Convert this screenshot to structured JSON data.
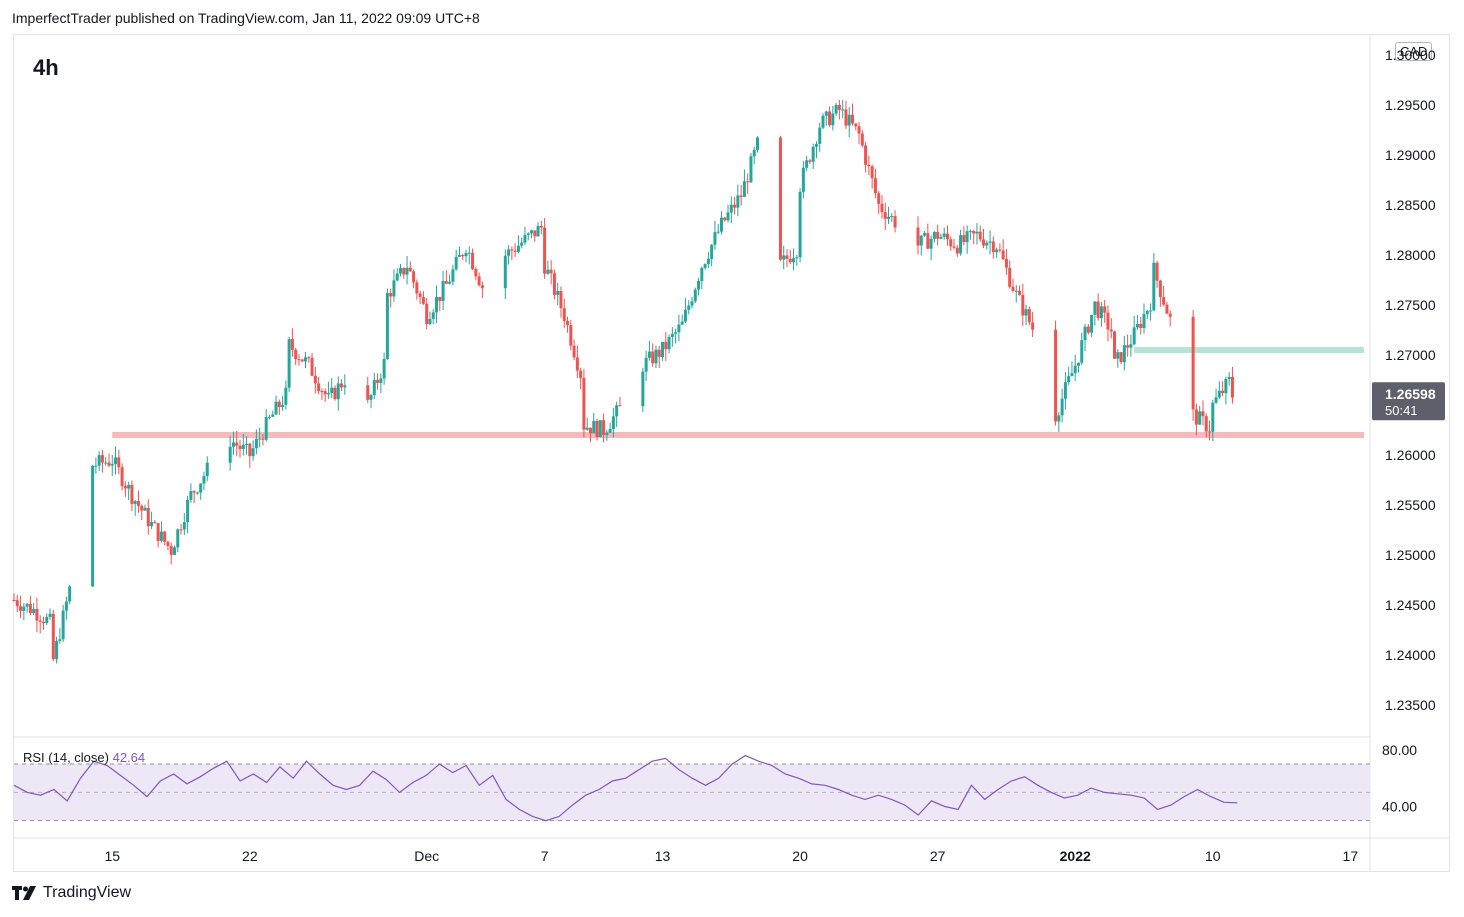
{
  "header": {
    "publisher_line": "ImperfectTrader published on TradingView.com, Jan 11, 2022 09:09 UTC+8"
  },
  "timeframe": "4h",
  "currency_label": "CAD",
  "last_price": {
    "value": "1.26598",
    "countdown": "50:41"
  },
  "footer": {
    "brand": "TradingView"
  },
  "colors": {
    "up": "#26a69a",
    "down": "#ef5350",
    "rsi_line": "#7e57c2",
    "rsi_band": "#ede7f6",
    "support_line": "#f7b9b9",
    "resistance_line": "#b5e3d6",
    "last_price_bg": "#5d606b"
  },
  "chart_data": [
    {
      "type": "candlestick",
      "title": "",
      "y_axis": {
        "ticks": [
          "1.30000",
          "1.29500",
          "1.29000",
          "1.28500",
          "1.28000",
          "1.27500",
          "1.27000",
          "1.26598",
          "1.26000",
          "1.25500",
          "1.25000",
          "1.24500",
          "1.24000",
          "1.23500"
        ],
        "range": [
          1.232,
          1.3015
        ]
      },
      "x_axis": {
        "ticks": [
          {
            "label": "15",
            "bold": false
          },
          {
            "label": "22",
            "bold": false
          },
          {
            "label": "Dec",
            "bold": false
          },
          {
            "label": "7",
            "bold": false
          },
          {
            "label": "13",
            "bold": false
          },
          {
            "label": "20",
            "bold": false
          },
          {
            "label": "27",
            "bold": false
          },
          {
            "label": "2022",
            "bold": true
          },
          {
            "label": "10",
            "bold": false
          },
          {
            "label": "17",
            "bold": false
          }
        ],
        "range": [
          "2021-11-10",
          "2022-01-18"
        ]
      },
      "anchor_points": [
        [
          "2021-11-10",
          1.2455
        ],
        [
          "2021-11-11",
          1.2445
        ],
        [
          "2021-11-12",
          1.243
        ],
        [
          "2021-11-12",
          1.2395
        ],
        [
          "2021-11-13",
          1.248
        ],
        [
          "2021-11-14",
          1.254
        ],
        [
          "2021-11-14",
          1.259
        ],
        [
          "2021-11-15",
          1.2595
        ],
        [
          "2021-11-16",
          1.256
        ],
        [
          "2021-11-17",
          1.253
        ],
        [
          "2021-11-18",
          1.2505
        ],
        [
          "2021-11-19",
          1.256
        ],
        [
          "2021-11-20",
          1.259
        ],
        [
          "2021-11-21",
          1.2615
        ],
        [
          "2021-11-22",
          1.26
        ],
        [
          "2021-11-23",
          1.2635
        ],
        [
          "2021-11-24",
          1.2665
        ],
        [
          "2021-11-24",
          1.271
        ],
        [
          "2021-11-25",
          1.269
        ],
        [
          "2021-11-26",
          1.2655
        ],
        [
          "2021-11-27",
          1.268
        ],
        [
          "2021-11-28",
          1.265
        ],
        [
          "2021-11-29",
          1.27
        ],
        [
          "2021-11-29",
          1.276
        ],
        [
          "2021-11-30",
          1.279
        ],
        [
          "2021-12-01",
          1.274
        ],
        [
          "2021-12-02",
          1.277
        ],
        [
          "2021-12-03",
          1.281
        ],
        [
          "2021-12-04",
          1.276
        ],
        [
          "2021-12-05",
          1.28
        ],
        [
          "2021-12-06",
          1.2815
        ],
        [
          "2021-12-07",
          1.283
        ],
        [
          "2021-12-07",
          1.279
        ],
        [
          "2021-12-08",
          1.274
        ],
        [
          "2021-12-09",
          1.267
        ],
        [
          "2021-12-09",
          1.263
        ],
        [
          "2021-12-10",
          1.2625
        ],
        [
          "2021-12-11",
          1.265
        ],
        [
          "2021-12-12",
          1.269
        ],
        [
          "2021-12-13",
          1.2705
        ],
        [
          "2021-12-14",
          1.273
        ],
        [
          "2021-12-15",
          1.279
        ],
        [
          "2021-12-16",
          1.283
        ],
        [
          "2021-12-17",
          1.286
        ],
        [
          "2021-12-18",
          1.292
        ],
        [
          "2021-12-18",
          1.285
        ],
        [
          "2021-12-19",
          1.279
        ],
        [
          "2021-12-20",
          1.281
        ],
        [
          "2021-12-20",
          1.287
        ],
        [
          "2021-12-21",
          1.293
        ],
        [
          "2021-12-22",
          1.2945
        ],
        [
          "2021-12-23",
          1.292
        ],
        [
          "2021-12-24",
          1.285
        ],
        [
          "2021-12-25",
          1.283
        ],
        [
          "2021-12-26",
          1.281
        ],
        [
          "2021-12-27",
          1.282
        ],
        [
          "2021-12-28",
          1.281
        ],
        [
          "2021-12-29",
          1.282
        ],
        [
          "2021-12-30",
          1.281
        ],
        [
          "2021-12-31",
          1.276
        ],
        [
          "2022-01-01",
          1.272
        ],
        [
          "2022-01-02",
          1.264
        ],
        [
          "2022-01-03",
          1.269
        ],
        [
          "2022-01-04",
          1.275
        ],
        [
          "2022-01-05",
          1.272
        ],
        [
          "2022-01-05",
          1.269
        ],
        [
          "2022-01-06",
          1.272
        ],
        [
          "2022-01-07",
          1.276
        ],
        [
          "2022-01-07",
          1.2785
        ],
        [
          "2022-01-08",
          1.2725
        ],
        [
          "2022-01-08",
          1.27
        ],
        [
          "2022-01-09",
          1.264
        ],
        [
          "2022-01-10",
          1.2625
        ],
        [
          "2022-01-10",
          1.265
        ],
        [
          "2022-01-11",
          1.2678
        ],
        [
          "2022-01-11",
          1.26598
        ]
      ],
      "annotations": [
        {
          "kind": "horizontal_line",
          "y": 1.262,
          "from": "2021-11-15",
          "to": "2022-01-18",
          "color": "#f7b9b9"
        },
        {
          "kind": "horizontal_line",
          "y": 1.2705,
          "from": "2022-01-06",
          "to": "2022-01-18",
          "color": "#b5e3d6"
        }
      ]
    },
    {
      "type": "line",
      "legend": {
        "label": "RSI (14, close)",
        "value": "42.64"
      },
      "y_axis": {
        "ticks": [
          "80.00",
          "40.00"
        ],
        "range": [
          22,
          87
        ]
      },
      "bands": [
        70,
        50,
        30
      ],
      "series": [
        {
          "values": [
            55,
            50,
            48,
            52,
            44,
            60,
            72,
            69,
            62,
            55,
            47,
            58,
            63,
            56,
            61,
            67,
            72,
            58,
            63,
            57,
            68,
            60,
            72,
            63,
            55,
            52,
            55,
            65,
            59,
            50,
            57,
            62,
            70,
            64,
            69,
            55,
            62,
            45,
            38,
            33,
            30,
            33,
            41,
            48,
            52,
            58,
            60,
            66,
            72,
            74,
            66,
            60,
            55,
            60,
            70,
            76,
            72,
            69,
            63,
            60,
            56,
            55,
            52,
            48,
            45,
            48,
            45,
            41,
            34,
            44,
            40,
            38,
            55,
            45,
            52,
            58,
            61,
            55,
            50,
            46,
            48,
            53,
            50,
            49,
            48,
            46,
            38,
            41,
            47,
            52,
            47,
            43,
            42.64
          ]
        }
      ]
    }
  ]
}
